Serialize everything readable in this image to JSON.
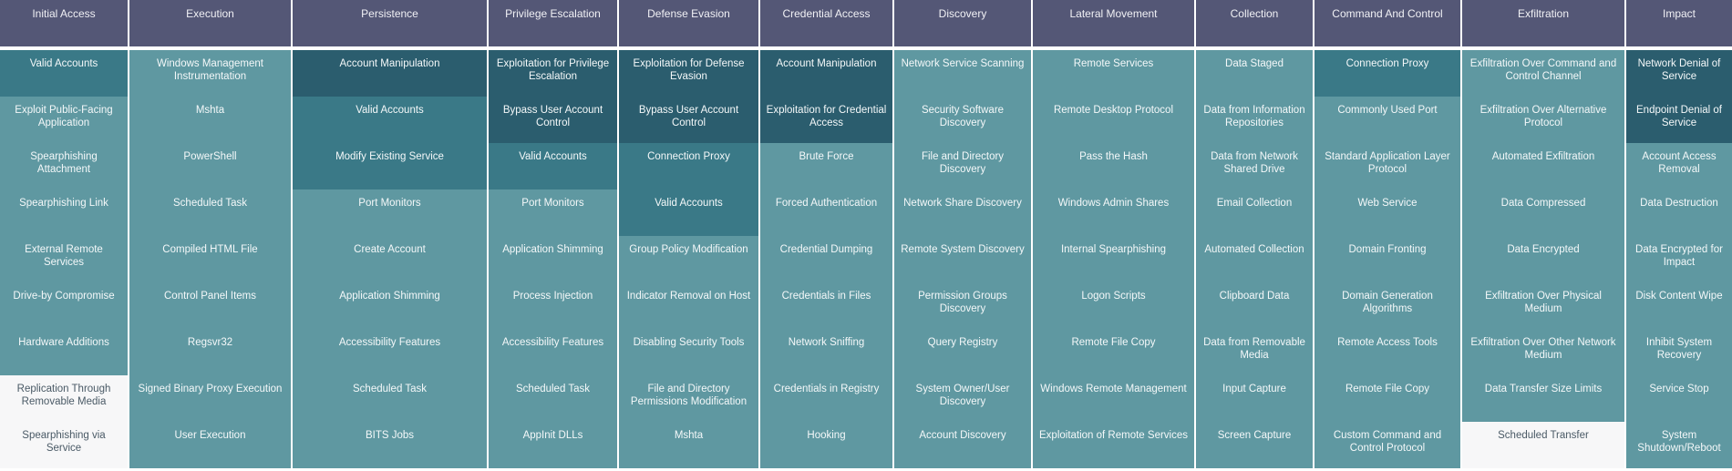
{
  "colors": {
    "header": "#545776",
    "dark": "#2b5d6e",
    "medium": "#3a7987",
    "light": "#5f98a1",
    "empty": "#f7f7f8"
  },
  "tactics": [
    {
      "name": "Initial Access",
      "techniques": [
        [
          "Valid Accounts",
          "m"
        ],
        [
          "Exploit Public-Facing Application",
          "l"
        ],
        [
          "Spearphishing Attachment",
          "l"
        ],
        [
          "Spearphishing Link",
          "l"
        ],
        [
          "External Remote Services",
          "l"
        ],
        [
          "Drive-by Compromise",
          "l"
        ],
        [
          "Hardware Additions",
          "l"
        ],
        [
          "Replication Through Removable Media",
          "w"
        ],
        [
          "Spearphishing via Service",
          "w"
        ]
      ]
    },
    {
      "name": "Execution",
      "techniques": [
        [
          "Windows Management Instrumentation",
          "l"
        ],
        [
          "Mshta",
          "l"
        ],
        [
          "PowerShell",
          "l"
        ],
        [
          "Scheduled Task",
          "l"
        ],
        [
          "Compiled HTML File",
          "l"
        ],
        [
          "Control Panel Items",
          "l"
        ],
        [
          "Regsvr32",
          "l"
        ],
        [
          "Signed Binary Proxy Execution",
          "l"
        ],
        [
          "User Execution",
          "l"
        ]
      ]
    },
    {
      "name": "Persistence",
      "techniques": [
        [
          "Account Manipulation",
          "d"
        ],
        [
          "Valid Accounts",
          "m"
        ],
        [
          "Modify Existing Service",
          "m"
        ],
        [
          "Port Monitors",
          "l"
        ],
        [
          "Create Account",
          "l"
        ],
        [
          "Application Shimming",
          "l"
        ],
        [
          "Accessibility Features",
          "l"
        ],
        [
          "Scheduled Task",
          "l"
        ],
        [
          "BITS Jobs",
          "l"
        ]
      ]
    },
    {
      "name": "Privilege Escalation",
      "techniques": [
        [
          "Exploitation for Privilege Escalation",
          "d"
        ],
        [
          "Bypass User Account Control",
          "d"
        ],
        [
          "Valid Accounts",
          "m"
        ],
        [
          "Port Monitors",
          "l"
        ],
        [
          "Application Shimming",
          "l"
        ],
        [
          "Process Injection",
          "l"
        ],
        [
          "Accessibility Features",
          "l"
        ],
        [
          "Scheduled Task",
          "l"
        ],
        [
          "AppInit DLLs",
          "l"
        ]
      ]
    },
    {
      "name": "Defense Evasion",
      "techniques": [
        [
          "Exploitation for Defense Evasion",
          "d"
        ],
        [
          "Bypass User Account Control",
          "d"
        ],
        [
          "Connection Proxy",
          "m"
        ],
        [
          "Valid Accounts",
          "m"
        ],
        [
          "Group Policy Modification",
          "l"
        ],
        [
          "Indicator Removal on Host",
          "l"
        ],
        [
          "Disabling Security Tools",
          "l"
        ],
        [
          "File and Directory Permissions Modification",
          "l"
        ],
        [
          "Mshta",
          "l"
        ]
      ]
    },
    {
      "name": "Credential Access",
      "techniques": [
        [
          "Account Manipulation",
          "d"
        ],
        [
          "Exploitation for Credential Access",
          "d"
        ],
        [
          "Brute Force",
          "l"
        ],
        [
          "Forced Authentication",
          "l"
        ],
        [
          "Credential Dumping",
          "l"
        ],
        [
          "Credentials in Files",
          "l"
        ],
        [
          "Network Sniffing",
          "l"
        ],
        [
          "Credentials in Registry",
          "l"
        ],
        [
          "Hooking",
          "l"
        ]
      ]
    },
    {
      "name": "Discovery",
      "techniques": [
        [
          "Network Service Scanning",
          "l"
        ],
        [
          "Security Software Discovery",
          "l"
        ],
        [
          "File and Directory Discovery",
          "l"
        ],
        [
          "Network Share Discovery",
          "l"
        ],
        [
          "Remote System Discovery",
          "l"
        ],
        [
          "Permission Groups Discovery",
          "l"
        ],
        [
          "Query Registry",
          "l"
        ],
        [
          "System Owner/User Discovery",
          "l"
        ],
        [
          "Account Discovery",
          "l"
        ]
      ]
    },
    {
      "name": "Lateral Movement",
      "techniques": [
        [
          "Remote Services",
          "l"
        ],
        [
          "Remote Desktop Protocol",
          "l"
        ],
        [
          "Pass the Hash",
          "l"
        ],
        [
          "Windows Admin Shares",
          "l"
        ],
        [
          "Internal Spearphishing",
          "l"
        ],
        [
          "Logon Scripts",
          "l"
        ],
        [
          "Remote File Copy",
          "l"
        ],
        [
          "Windows Remote Management",
          "l"
        ],
        [
          "Exploitation of Remote Services",
          "l"
        ]
      ]
    },
    {
      "name": "Collection",
      "techniques": [
        [
          "Data Staged",
          "l"
        ],
        [
          "Data from Information Repositories",
          "l"
        ],
        [
          "Data from Network Shared Drive",
          "l"
        ],
        [
          "Email Collection",
          "l"
        ],
        [
          "Automated Collection",
          "l"
        ],
        [
          "Clipboard Data",
          "l"
        ],
        [
          "Data from Removable Media",
          "l"
        ],
        [
          "Input Capture",
          "l"
        ],
        [
          "Screen Capture",
          "l"
        ]
      ]
    },
    {
      "name": "Command And Control",
      "techniques": [
        [
          "Connection Proxy",
          "m"
        ],
        [
          "Commonly Used Port",
          "l"
        ],
        [
          "Standard Application Layer Protocol",
          "l"
        ],
        [
          "Web Service",
          "l"
        ],
        [
          "Domain Fronting",
          "l"
        ],
        [
          "Domain Generation Algorithms",
          "l"
        ],
        [
          "Remote Access Tools",
          "l"
        ],
        [
          "Remote File Copy",
          "l"
        ],
        [
          "Custom Command and Control Protocol",
          "l"
        ]
      ]
    },
    {
      "name": "Exfiltration",
      "techniques": [
        [
          "Exfiltration Over Command and Control Channel",
          "l"
        ],
        [
          "Exfiltration Over Alternative Protocol",
          "l"
        ],
        [
          "Automated Exfiltration",
          "l"
        ],
        [
          "Data Compressed",
          "l"
        ],
        [
          "Data Encrypted",
          "l"
        ],
        [
          "Exfiltration Over Physical Medium",
          "l"
        ],
        [
          "Exfiltration Over Other Network Medium",
          "l"
        ],
        [
          "Data Transfer Size Limits",
          "l"
        ],
        [
          "Scheduled Transfer",
          "w"
        ]
      ]
    },
    {
      "name": "Impact",
      "techniques": [
        [
          "Network Denial of Service",
          "d"
        ],
        [
          "Endpoint Denial of Service",
          "d"
        ],
        [
          "Account Access Removal",
          "l"
        ],
        [
          "Data Destruction",
          "l"
        ],
        [
          "Data Encrypted for Impact",
          "l"
        ],
        [
          "Disk Content Wipe",
          "l"
        ],
        [
          "Inhibit System Recovery",
          "l"
        ],
        [
          "Service Stop",
          "l"
        ],
        [
          "System Shutdown/Reboot",
          "l"
        ]
      ]
    }
  ]
}
